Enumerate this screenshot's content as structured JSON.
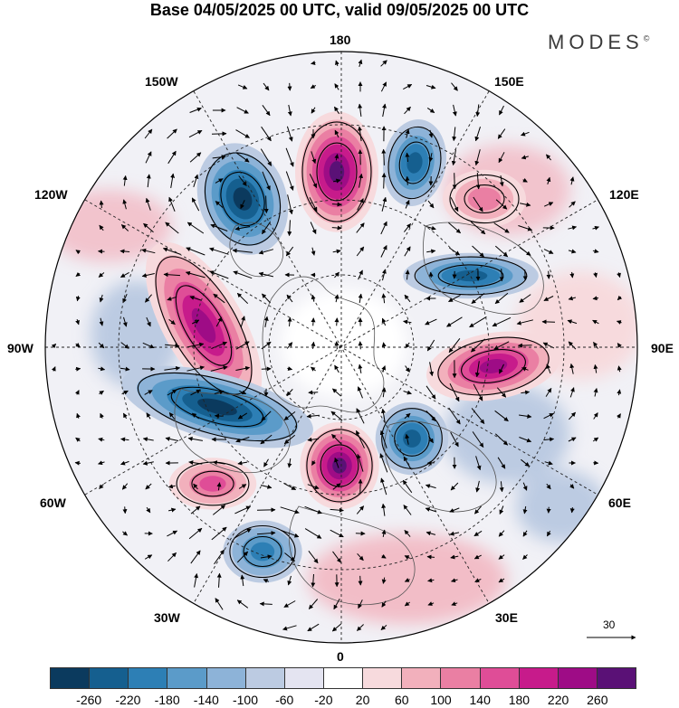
{
  "title": "Base 04/05/2025 00 UTC, valid 09/05/2025 00 UTC",
  "brand": "MODES",
  "brand_mark": "©",
  "longitude_labels": {
    "top": "180",
    "bottom": "0",
    "left": "90W",
    "right": "90E",
    "upper_left_1": "150W",
    "upper_left_2": "120W",
    "upper_right_1": "150E",
    "upper_right_2": "120E",
    "lower_left_1": "60W",
    "lower_left_2": "30W",
    "lower_right_1": "60E",
    "lower_right_2": "30E"
  },
  "reference_vector": {
    "value": "30"
  },
  "colorbar": {
    "colors": [
      "#0b3a5e",
      "#155f8f",
      "#2d7fb5",
      "#5b9bc9",
      "#8db3d8",
      "#bccbe2",
      "#e4e4f1",
      "#ffffff",
      "#f7dadd",
      "#f2b0bc",
      "#ea7fa3",
      "#df4d97",
      "#c71b8b",
      "#9e0c86",
      "#5a1176"
    ],
    "ticks": [
      "-260",
      "-220",
      "-180",
      "-140",
      "-100",
      "-60",
      "-20",
      "20",
      "60",
      "100",
      "140",
      "180",
      "220",
      "260"
    ]
  },
  "anomaly_centers": [
    {
      "name": "low-north-pacific",
      "sign": "negative",
      "value": -260
    },
    {
      "name": "high-east-siberia",
      "sign": "positive",
      "value": 260
    },
    {
      "name": "low-bering",
      "sign": "negative",
      "value": -180
    },
    {
      "name": "high-canada",
      "sign": "positive",
      "value": 220
    },
    {
      "name": "low-north-atlantic",
      "sign": "negative",
      "value": -220
    },
    {
      "name": "high-greenland-sea",
      "sign": "positive",
      "value": 260
    },
    {
      "name": "low-scandinavia",
      "sign": "negative",
      "value": -180
    },
    {
      "name": "high-siberia",
      "sign": "positive",
      "value": 220
    },
    {
      "name": "low-west-siberia",
      "sign": "negative",
      "value": -180
    },
    {
      "name": "high-atlantic",
      "sign": "positive",
      "value": 140
    },
    {
      "name": "low-azores",
      "sign": "negative",
      "value": -140
    },
    {
      "name": "high-mongolia",
      "sign": "positive",
      "value": 100
    }
  ]
}
